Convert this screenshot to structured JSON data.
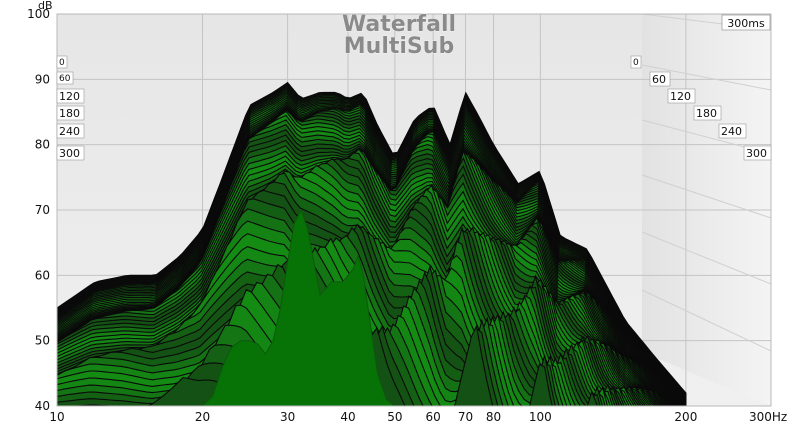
{
  "chart_data": {
    "type": "area",
    "title": "Waterfall",
    "subtitle": "MultiSub",
    "ylabel": "dB",
    "x_unit": "Hz",
    "time_label": "300ms",
    "x_scale": "log",
    "xlim": [
      10,
      300
    ],
    "ylim": [
      40,
      100
    ],
    "x_ticks": [
      "10",
      "20",
      "30",
      "40",
      "50",
      "60",
      "70",
      "80",
      "100",
      "200",
      "300Hz"
    ],
    "y_ticks": [
      "40",
      "50",
      "60",
      "70",
      "80",
      "90",
      "100"
    ],
    "time_axis_left": [
      "0",
      "60",
      "120",
      "180",
      "240",
      "300"
    ],
    "time_axis_right": [
      "0",
      "60",
      "120",
      "180",
      "240",
      "300"
    ],
    "grid": true,
    "colors": {
      "fill": "#1d8a1d",
      "front_fill": "#077307",
      "edge": "#0a0a0a",
      "plot_bg": "#e8e8e8"
    },
    "series": [
      {
        "name": "0",
        "x": [
          10,
          12,
          14,
          16,
          18,
          20,
          22,
          25,
          28,
          30,
          32,
          35,
          38,
          40,
          43,
          46,
          50,
          55,
          60,
          65,
          70,
          75,
          80,
          90,
          100,
          110,
          125,
          150,
          175,
          200
        ],
        "y": [
          55,
          59,
          60,
          60,
          63,
          67,
          75,
          86,
          88,
          89.5,
          87,
          88,
          88,
          87,
          88,
          83,
          78,
          84,
          86,
          80,
          88,
          84,
          80,
          74,
          76,
          66,
          64,
          53,
          47,
          42
        ]
      },
      {
        "name": "300",
        "x": [
          20,
          21,
          22,
          23,
          24,
          25,
          26,
          27,
          28,
          29,
          30,
          31,
          32,
          33,
          34,
          35,
          36,
          37,
          38,
          39,
          40,
          41,
          42,
          43,
          44,
          45,
          46,
          48,
          50
        ],
        "y": [
          40,
          41.5,
          46,
          49,
          50,
          50,
          49.5,
          48,
          50,
          55,
          62,
          68,
          70,
          67,
          62,
          57,
          58,
          59,
          59,
          59,
          60,
          61,
          63,
          60,
          55,
          50,
          45,
          41,
          40
        ]
      }
    ]
  }
}
